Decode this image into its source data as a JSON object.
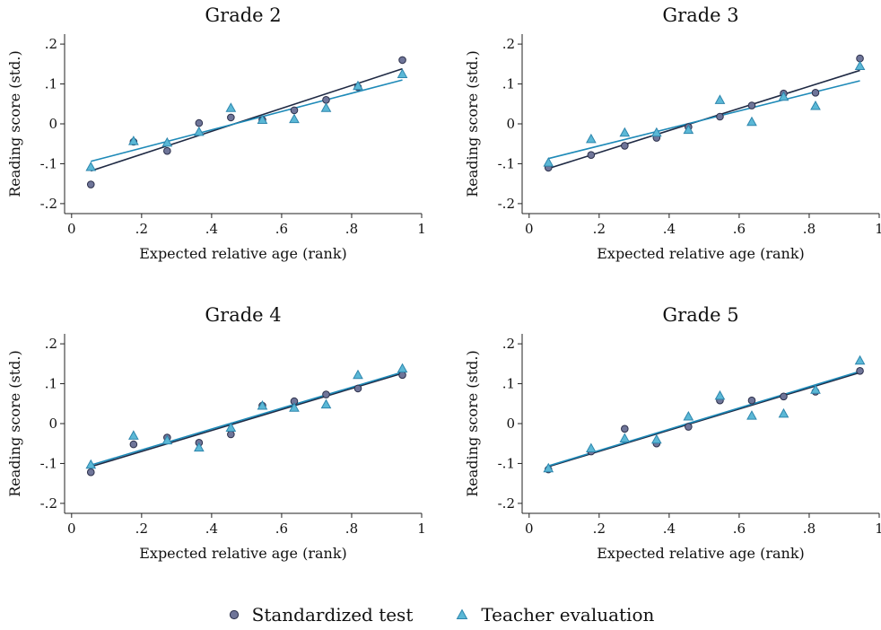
{
  "chart_data": [
    {
      "type": "scatter",
      "title": "Grade 2",
      "xlabel": "Expected relative age (rank)",
      "ylabel": "Reading score (std.)",
      "xlim": [
        -0.02,
        1.0
      ],
      "ylim": [
        -0.225,
        0.225
      ],
      "xticks": [
        0,
        0.2,
        0.4,
        0.6,
        0.8,
        1
      ],
      "xtick_labels": [
        "0",
        ".2",
        ".4",
        ".6",
        ".8",
        "1"
      ],
      "yticks": [
        -0.2,
        -0.1,
        0,
        0.1,
        0.2
      ],
      "ytick_labels": [
        "-.2",
        "-.1",
        "0",
        ".1",
        ".2"
      ],
      "series": [
        {
          "key": "std",
          "x": [
            0.055,
            0.177,
            0.273,
            0.364,
            0.455,
            0.545,
            0.636,
            0.727,
            0.818,
            0.945
          ],
          "y": [
            -0.152,
            -0.045,
            -0.068,
            0.002,
            0.016,
            0.01,
            0.034,
            0.06,
            0.092,
            0.16
          ],
          "fit": [
            [
              0.055,
              -0.118
            ],
            [
              0.945,
              0.138
            ]
          ]
        },
        {
          "key": "teacher",
          "x": [
            0.055,
            0.177,
            0.273,
            0.364,
            0.455,
            0.545,
            0.636,
            0.727,
            0.818,
            0.945
          ],
          "y": [
            -0.108,
            -0.043,
            -0.047,
            -0.02,
            0.04,
            0.01,
            0.012,
            0.04,
            0.095,
            0.125
          ],
          "fit": [
            [
              0.055,
              -0.094
            ],
            [
              0.945,
              0.11
            ]
          ]
        }
      ]
    },
    {
      "type": "scatter",
      "title": "Grade 3",
      "xlabel": "Expected relative age (rank)",
      "ylabel": "Reading score (std.)",
      "xlim": [
        -0.02,
        1.0
      ],
      "ylim": [
        -0.225,
        0.225
      ],
      "xticks": [
        0,
        0.2,
        0.4,
        0.6,
        0.8,
        1
      ],
      "xtick_labels": [
        "0",
        ".2",
        ".4",
        ".6",
        ".8",
        "1"
      ],
      "yticks": [
        -0.2,
        -0.1,
        0,
        0.1,
        0.2
      ],
      "ytick_labels": [
        "-.2",
        "-.1",
        "0",
        ".1",
        ".2"
      ],
      "series": [
        {
          "key": "std",
          "x": [
            0.055,
            0.177,
            0.273,
            0.364,
            0.455,
            0.545,
            0.636,
            0.727,
            0.818,
            0.945
          ],
          "y": [
            -0.11,
            -0.078,
            -0.055,
            -0.035,
            -0.008,
            0.018,
            0.046,
            0.076,
            0.078,
            0.164
          ],
          "fit": [
            [
              0.055,
              -0.112
            ],
            [
              0.945,
              0.134
            ]
          ]
        },
        {
          "key": "teacher",
          "x": [
            0.055,
            0.177,
            0.273,
            0.364,
            0.455,
            0.545,
            0.636,
            0.727,
            0.818,
            0.945
          ],
          "y": [
            -0.097,
            -0.038,
            -0.022,
            -0.022,
            -0.015,
            0.06,
            0.005,
            0.068,
            0.045,
            0.145
          ],
          "fit": [
            [
              0.055,
              -0.087
            ],
            [
              0.945,
              0.108
            ]
          ]
        }
      ]
    },
    {
      "type": "scatter",
      "title": "Grade 4",
      "xlabel": "Expected relative age (rank)",
      "ylabel": "Reading score (std.)",
      "xlim": [
        -0.02,
        1.0
      ],
      "ylim": [
        -0.225,
        0.225
      ],
      "xticks": [
        0,
        0.2,
        0.4,
        0.6,
        0.8,
        1
      ],
      "xtick_labels": [
        "0",
        ".2",
        ".4",
        ".6",
        ".8",
        "1"
      ],
      "yticks": [
        -0.2,
        -0.1,
        0,
        0.1,
        0.2
      ],
      "ytick_labels": [
        "-.2",
        "-.1",
        "0",
        ".1",
        ".2"
      ],
      "series": [
        {
          "key": "std",
          "x": [
            0.055,
            0.177,
            0.273,
            0.364,
            0.455,
            0.545,
            0.636,
            0.727,
            0.818,
            0.945
          ],
          "y": [
            -0.122,
            -0.052,
            -0.035,
            -0.048,
            -0.027,
            0.045,
            0.056,
            0.073,
            0.088,
            0.122
          ],
          "fit": [
            [
              0.055,
              -0.108
            ],
            [
              0.945,
              0.126
            ]
          ]
        },
        {
          "key": "teacher",
          "x": [
            0.055,
            0.177,
            0.273,
            0.364,
            0.455,
            0.545,
            0.636,
            0.727,
            0.818,
            0.945
          ],
          "y": [
            -0.103,
            -0.03,
            -0.042,
            -0.06,
            -0.01,
            0.045,
            0.04,
            0.048,
            0.122,
            0.138
          ],
          "fit": [
            [
              0.055,
              -0.104
            ],
            [
              0.945,
              0.129
            ]
          ]
        }
      ]
    },
    {
      "type": "scatter",
      "title": "Grade 5",
      "xlabel": "Expected relative age (rank)",
      "ylabel": "Reading score (std.)",
      "xlim": [
        -0.02,
        1.0
      ],
      "ylim": [
        -0.225,
        0.225
      ],
      "xticks": [
        0,
        0.2,
        0.4,
        0.6,
        0.8,
        1
      ],
      "xtick_labels": [
        "0",
        ".2",
        ".4",
        ".6",
        ".8",
        "1"
      ],
      "yticks": [
        -0.2,
        -0.1,
        0,
        0.1,
        0.2
      ],
      "ytick_labels": [
        "-.2",
        "-.1",
        "0",
        ".1",
        ".2"
      ],
      "series": [
        {
          "key": "std",
          "x": [
            0.055,
            0.177,
            0.273,
            0.364,
            0.455,
            0.545,
            0.636,
            0.727,
            0.818,
            0.945
          ],
          "y": [
            -0.115,
            -0.07,
            -0.013,
            -0.05,
            -0.008,
            0.058,
            0.058,
            0.068,
            0.08,
            0.132
          ],
          "fit": [
            [
              0.055,
              -0.108
            ],
            [
              0.945,
              0.128
            ]
          ]
        },
        {
          "key": "teacher",
          "x": [
            0.055,
            0.177,
            0.273,
            0.364,
            0.455,
            0.545,
            0.636,
            0.727,
            0.818,
            0.945
          ],
          "y": [
            -0.112,
            -0.062,
            -0.037,
            -0.04,
            0.018,
            0.07,
            0.02,
            0.025,
            0.085,
            0.158
          ],
          "fit": [
            [
              0.055,
              -0.106
            ],
            [
              0.945,
              0.131
            ]
          ]
        }
      ]
    }
  ],
  "legend": {
    "placement": "bottom-center",
    "items": [
      {
        "key": "std",
        "label": "Standardized test",
        "marker": "circle",
        "fill": "#6f7599",
        "stroke": "#2b2f4a",
        "line_color": "#1f2a44"
      },
      {
        "key": "teacher",
        "label": "Teacher evaluation",
        "marker": "triangle",
        "fill": "#5bb8d6",
        "stroke": "#2e86ad",
        "line_color": "#1e8ab8"
      }
    ]
  }
}
